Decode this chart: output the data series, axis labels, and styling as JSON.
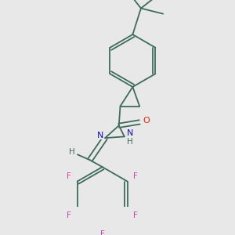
{
  "background_color": "#e8e8e8",
  "bond_color": "#3d6b5c",
  "figsize": [
    3.0,
    3.0
  ],
  "dpi": 100,
  "atoms": {
    "O": {
      "color": "#ee2200",
      "fontsize": 8
    },
    "N": {
      "color": "#1111bb",
      "fontsize": 8
    },
    "F": {
      "color": "#cc44aa",
      "fontsize": 7.5
    },
    "H": {
      "color": "#3d6b5c",
      "fontsize": 7.5
    }
  }
}
